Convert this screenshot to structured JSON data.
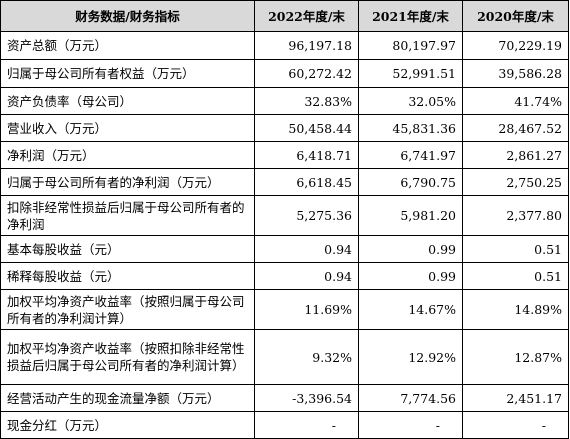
{
  "table": {
    "headers": [
      "财务数据/财务指标",
      "2022年度/末",
      "2021年度/末",
      "2020年度/末"
    ],
    "rows": [
      {
        "label": "资产总额（万元）",
        "values": [
          "96,197.18",
          "80,197.97",
          "70,229.19"
        ]
      },
      {
        "label": "归属于母公司所有者权益（万元）",
        "values": [
          "60,272.42",
          "52,991.51",
          "39,586.28"
        ]
      },
      {
        "label": "资产负债率（母公司）",
        "values": [
          "32.83%",
          "32.05%",
          "41.74%"
        ]
      },
      {
        "label": "营业收入（万元）",
        "values": [
          "50,458.44",
          "45,831.36",
          "28,467.52"
        ]
      },
      {
        "label": "净利润（万元）",
        "values": [
          "6,418.71",
          "6,741.97",
          "2,861.27"
        ]
      },
      {
        "label": "归属于母公司所有者的净利润（万元）",
        "values": [
          "6,618.45",
          "6,790.75",
          "2,750.25"
        ]
      },
      {
        "label": "扣除非经常性损益后归属于母公司所有者的净利润",
        "values": [
          "5,275.36",
          "5,981.20",
          "2,377.80"
        ]
      },
      {
        "label": "基本每股收益（元）",
        "values": [
          "0.94",
          "0.99",
          "0.51"
        ]
      },
      {
        "label": "稀释每股收益（元）",
        "values": [
          "0.94",
          "0.99",
          "0.51"
        ]
      },
      {
        "label": "加权平均净资产收益率（按照归属于母公司所有者的净利润计算）",
        "values": [
          "11.69%",
          "14.67%",
          "14.89%"
        ]
      },
      {
        "label": "加权平均净资产收益率（按照扣除非经常性损益后归属于母公司所有者的净利润计算）",
        "values": [
          "9.32%",
          "12.92%",
          "12.87%"
        ]
      },
      {
        "label": "经营活动产生的现金流量净额（万元）",
        "values": [
          "-3,396.54",
          "7,774.56",
          "2,451.17"
        ]
      },
      {
        "label": "现金分红（万元）",
        "values": [
          "-",
          "-",
          "-"
        ]
      }
    ]
  }
}
